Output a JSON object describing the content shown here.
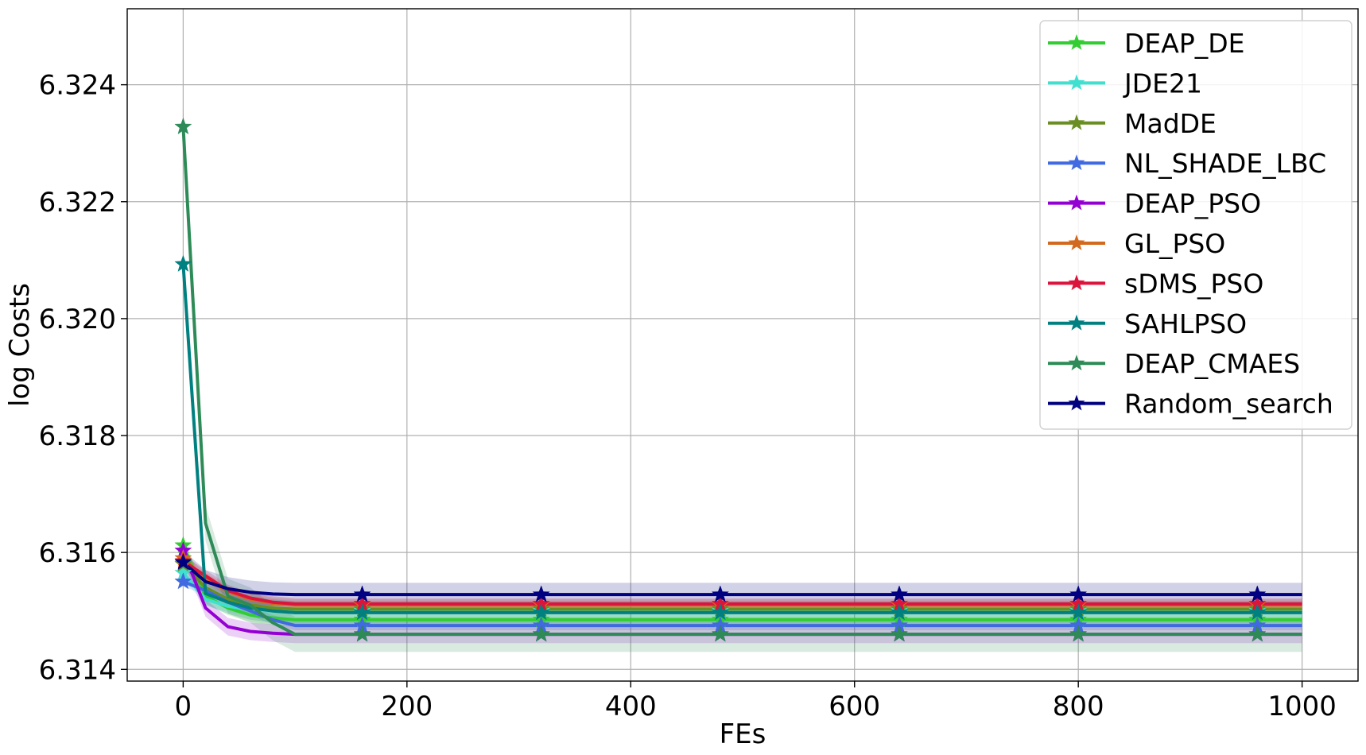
{
  "chart_data": {
    "type": "line",
    "title": "",
    "xlabel": "FEs",
    "ylabel": "log Costs",
    "xlim": [
      -50,
      1050
    ],
    "ylim": [
      6.3138,
      6.3253
    ],
    "xticks": [
      0,
      200,
      400,
      600,
      800,
      1000
    ],
    "xtick_labels": [
      "0",
      "200",
      "400",
      "600",
      "800",
      "1000"
    ],
    "yticks": [
      6.314,
      6.316,
      6.318,
      6.32,
      6.322,
      6.324
    ],
    "ytick_labels": [
      "6.314",
      "6.316",
      "6.318",
      "6.320",
      "6.322",
      "6.324"
    ],
    "grid": true,
    "legend_position": "top-right",
    "marker": "star",
    "marker_x": [
      0,
      160,
      320,
      480,
      640,
      800,
      960
    ],
    "series": [
      {
        "name": "DEAP_DE",
        "color": "#32cd32",
        "x": [
          0,
          20,
          40,
          60,
          80,
          100,
          1000
        ],
        "y": [
          6.31612,
          6.31525,
          6.31505,
          6.31493,
          6.31488,
          6.31485,
          6.31485
        ],
        "band": 0.00012
      },
      {
        "name": "JDE21",
        "color": "#40e0d0",
        "x": [
          0,
          20,
          40,
          60,
          80,
          100,
          1000
        ],
        "y": [
          6.31565,
          6.3152,
          6.31508,
          6.31502,
          6.315,
          6.315,
          6.315
        ],
        "band": 0.0001
      },
      {
        "name": "MadDE",
        "color": "#6b8e23",
        "x": [
          0,
          20,
          40,
          60,
          80,
          100,
          1000
        ],
        "y": [
          6.3158,
          6.3154,
          6.3152,
          6.3151,
          6.31505,
          6.31503,
          6.31503
        ],
        "band": 8e-05
      },
      {
        "name": "NL_SHADE_LBC",
        "color": "#4169e1",
        "x": [
          0,
          20,
          40,
          60,
          80,
          100,
          1000
        ],
        "y": [
          6.3155,
          6.31535,
          6.31515,
          6.315,
          6.31485,
          6.31475,
          6.31475
        ],
        "band": 8e-05
      },
      {
        "name": "DEAP_PSO",
        "color": "#9400d3",
        "x": [
          0,
          20,
          40,
          60,
          80,
          100
        ],
        "y": [
          6.31603,
          6.31505,
          6.31473,
          6.31465,
          6.31462,
          6.3146
        ],
        "band": 0.00015
      },
      {
        "name": "GL_PSO",
        "color": "#d2691e",
        "x": [
          0,
          20,
          40,
          60,
          80,
          100
        ],
        "y": [
          6.3159,
          6.31555,
          6.31533,
          6.3152,
          6.31513,
          6.3151
        ],
        "band": 0.0001
      },
      {
        "name": "sDMS_PSO",
        "color": "#dc143c",
        "x": [
          0,
          20,
          40,
          60,
          80,
          100,
          1000
        ],
        "y": [
          6.31585,
          6.3156,
          6.31535,
          6.31522,
          6.31515,
          6.31512,
          6.31512
        ],
        "band": 0.0001
      },
      {
        "name": "SAHLPSO",
        "color": "#008080",
        "x": [
          0,
          20,
          40,
          60,
          80,
          100,
          1000
        ],
        "y": [
          6.32093,
          6.3153,
          6.31515,
          6.31505,
          6.315,
          6.31497,
          6.31497
        ],
        "band": 0.0002
      },
      {
        "name": "DEAP_CMAES",
        "color": "#2e8b57",
        "x": [
          0,
          20,
          40,
          60,
          80,
          100,
          1000
        ],
        "y": [
          6.32328,
          6.3165,
          6.31525,
          6.3151,
          6.3148,
          6.3146,
          6.3146
        ],
        "band": 0.0003
      },
      {
        "name": "Random_search",
        "color": "#000080",
        "x": [
          0,
          20,
          40,
          60,
          80,
          100,
          1000
        ],
        "y": [
          6.31583,
          6.3155,
          6.31538,
          6.31532,
          6.31529,
          6.31528,
          6.31528
        ],
        "band": 0.0002
      }
    ]
  }
}
